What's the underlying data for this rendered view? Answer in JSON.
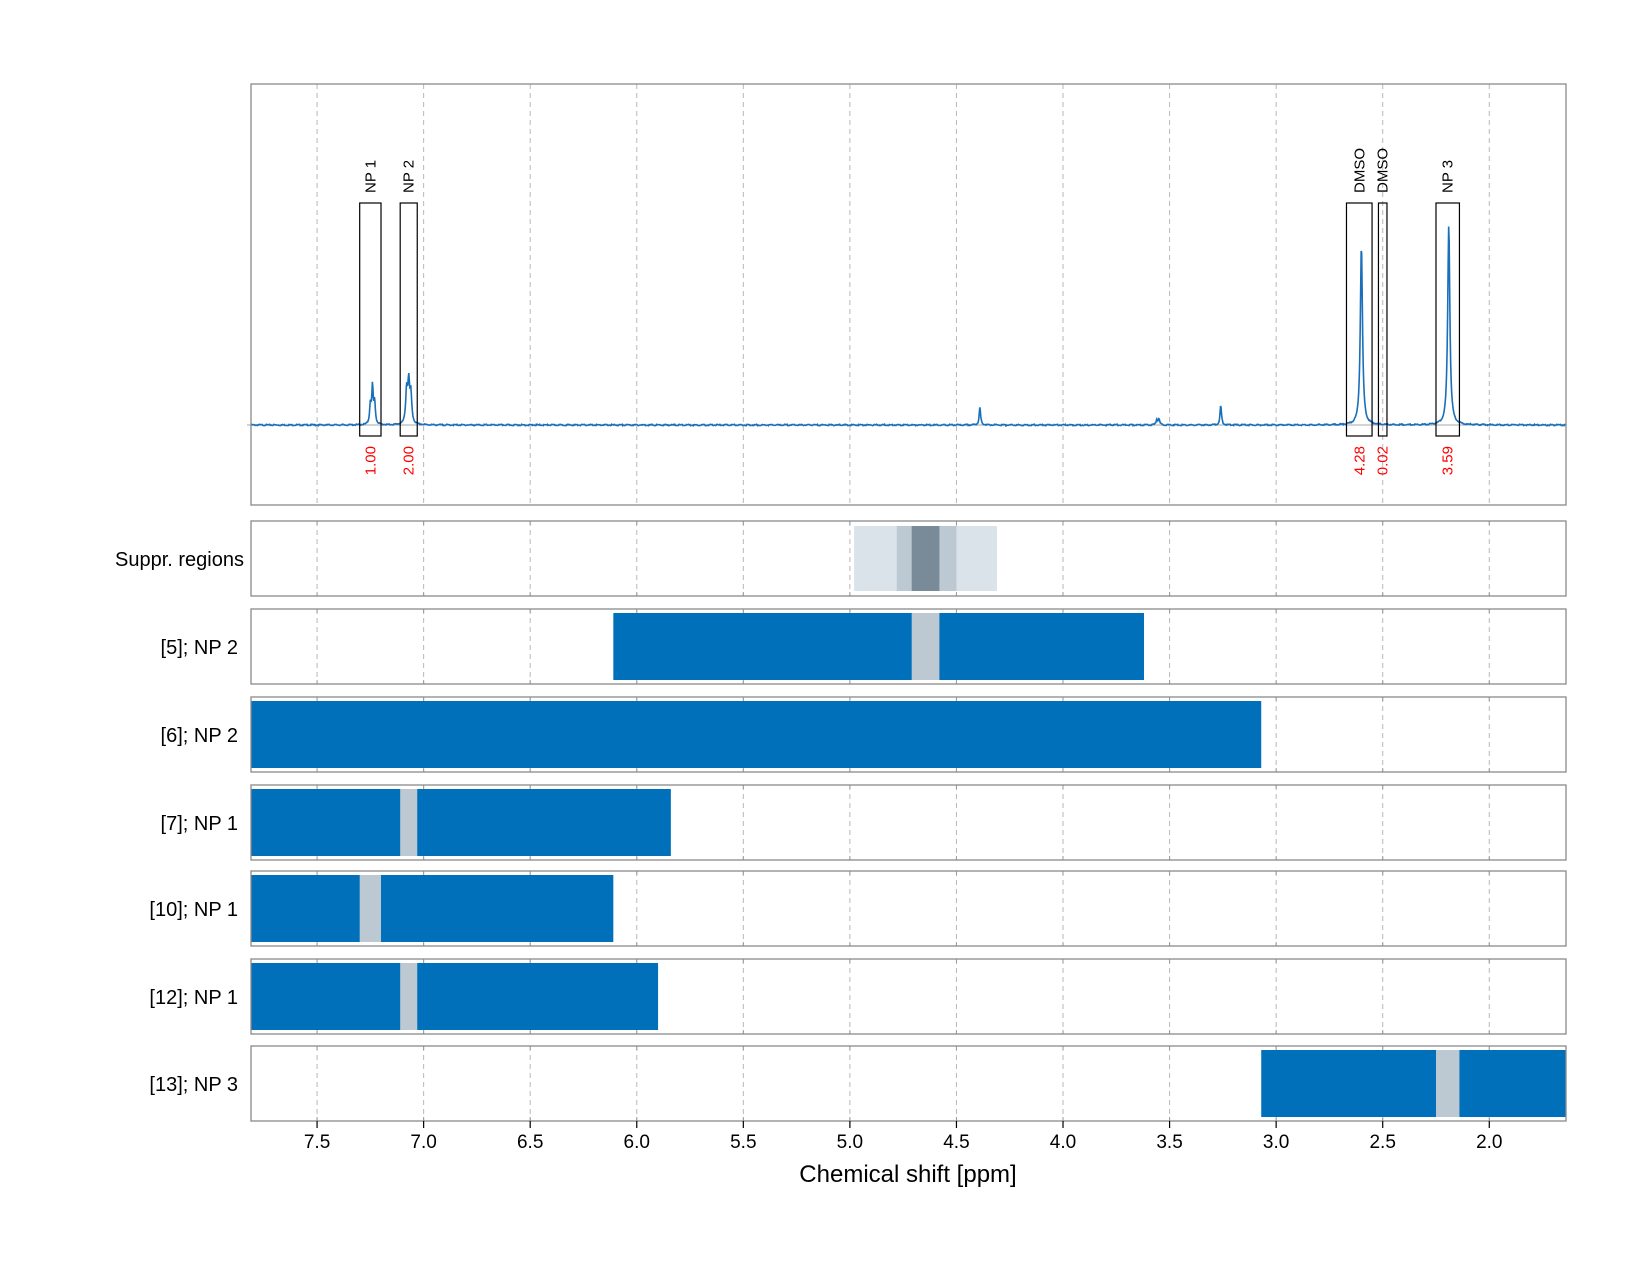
{
  "chart_data": {
    "type": "line",
    "xlabel": "Chemical shift [ppm]",
    "xlim": [
      7.81,
      1.64
    ],
    "x_reversed": true,
    "x_ticks": [
      7.5,
      7.0,
      6.5,
      6.0,
      5.5,
      5.0,
      4.5,
      4.0,
      3.5,
      3.0,
      2.5,
      2.0
    ],
    "x_tick_labels": [
      "7.5",
      "7.0",
      "6.5",
      "6.0",
      "5.5",
      "5.0",
      "4.5",
      "4.0",
      "3.5",
      "3.0",
      "2.5",
      "2.0"
    ],
    "grid": true,
    "colors": {
      "spectrum": "#1a6fba",
      "bar": "#0070bb",
      "gap": "#bcc9d2",
      "suppr_outer": "#dae2ea",
      "suppr_mid": "#bcc9d2",
      "suppr_core": "#798b99",
      "integral": "#ff0000",
      "frame": "#8a8a8a",
      "grid": "#b8b8b8"
    },
    "spectrum": {
      "baseline": 0,
      "peaks": [
        {
          "x": 7.25,
          "h": 0.09,
          "w": 0.004
        },
        {
          "x": 7.24,
          "h": 0.17,
          "w": 0.004
        },
        {
          "x": 7.23,
          "h": 0.1,
          "w": 0.004
        },
        {
          "x": 7.08,
          "h": 0.15,
          "w": 0.005
        },
        {
          "x": 7.07,
          "h": 0.18,
          "w": 0.005
        },
        {
          "x": 7.06,
          "h": 0.13,
          "w": 0.005
        },
        {
          "x": 4.39,
          "h": 0.08,
          "w": 0.004
        },
        {
          "x": 3.56,
          "h": 0.025,
          "w": 0.004
        },
        {
          "x": 3.55,
          "h": 0.028,
          "w": 0.004
        },
        {
          "x": 3.26,
          "h": 0.09,
          "w": 0.004
        },
        {
          "x": 2.6,
          "h": 0.82,
          "w": 0.006
        },
        {
          "x": 2.19,
          "h": 0.91,
          "w": 0.006
        }
      ]
    },
    "integral_regions": [
      {
        "label": "NP 1",
        "x_from": 7.3,
        "x_to": 7.2,
        "value": "1.00"
      },
      {
        "label": "NP 2",
        "x_from": 7.11,
        "x_to": 7.03,
        "value": "2.00"
      },
      {
        "label": "DMSO",
        "x_from": 2.67,
        "x_to": 2.55,
        "value": "4.28"
      },
      {
        "label": "DMSO",
        "x_from": 2.52,
        "x_to": 2.48,
        "value": "0.02"
      },
      {
        "label": "NP 3",
        "x_from": 2.25,
        "x_to": 2.14,
        "value": "3.59"
      }
    ],
    "suppression": {
      "label": "Suppr. regions",
      "bands": [
        {
          "x_from": 4.98,
          "x_to": 4.31,
          "level": "outer"
        },
        {
          "x_from": 4.78,
          "x_to": 4.5,
          "level": "mid"
        },
        {
          "x_from": 4.71,
          "x_to": 4.58,
          "level": "core"
        }
      ]
    },
    "tracks": [
      {
        "label": "[5]; NP 2",
        "bar": [
          6.11,
          3.62
        ],
        "gap": [
          4.71,
          4.58
        ]
      },
      {
        "label": "[6]; NP 2",
        "bar": [
          7.81,
          3.07
        ],
        "gap": null
      },
      {
        "label": "[7]; NP 1",
        "bar": [
          7.81,
          5.84
        ],
        "gap": [
          7.11,
          7.03
        ]
      },
      {
        "label": "[10]; NP 1",
        "bar": [
          7.81,
          6.11
        ],
        "gap": [
          7.3,
          7.2
        ]
      },
      {
        "label": "[12]; NP 1",
        "bar": [
          7.81,
          5.9
        ],
        "gap": [
          7.11,
          7.03
        ]
      },
      {
        "label": "[13]; NP 3",
        "bar": [
          3.07,
          1.64
        ],
        "gap": [
          2.25,
          2.14
        ]
      }
    ]
  }
}
